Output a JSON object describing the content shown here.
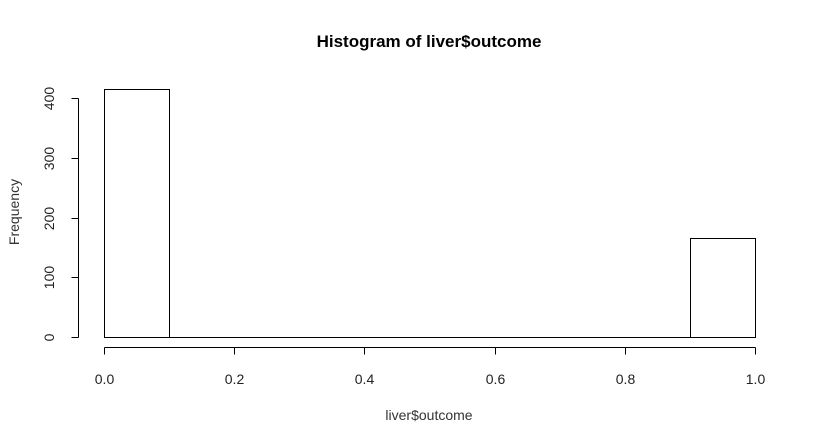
{
  "chart_data": {
    "type": "bar",
    "title": "Histogram of liver$outcome",
    "xlabel": "liver$outcome",
    "ylabel": "Frequency",
    "xlim": [
      0,
      1
    ],
    "ylim": [
      0,
      420
    ],
    "bins": [
      {
        "start": 0.0,
        "end": 0.1,
        "count": 415
      },
      {
        "start": 0.1,
        "end": 0.2,
        "count": 0
      },
      {
        "start": 0.2,
        "end": 0.3,
        "count": 0
      },
      {
        "start": 0.3,
        "end": 0.4,
        "count": 0
      },
      {
        "start": 0.4,
        "end": 0.5,
        "count": 0
      },
      {
        "start": 0.5,
        "end": 0.6,
        "count": 0
      },
      {
        "start": 0.6,
        "end": 0.7,
        "count": 0
      },
      {
        "start": 0.7,
        "end": 0.8,
        "count": 0
      },
      {
        "start": 0.8,
        "end": 0.9,
        "count": 0
      },
      {
        "start": 0.9,
        "end": 1.0,
        "count": 165
      }
    ],
    "x_ticks": [
      0.0,
      0.2,
      0.4,
      0.6,
      0.8,
      1.0
    ],
    "x_tick_labels": [
      "0.0",
      "0.2",
      "0.4",
      "0.6",
      "0.8",
      "1.0"
    ],
    "y_ticks": [
      0,
      100,
      200,
      300,
      400
    ],
    "y_tick_labels": [
      "0",
      "100",
      "200",
      "300",
      "400"
    ],
    "grid": false,
    "legend": "none",
    "colors": {
      "bar_fill": "#ffffff",
      "bar_stroke": "#000000",
      "background": "#ffffff"
    }
  }
}
